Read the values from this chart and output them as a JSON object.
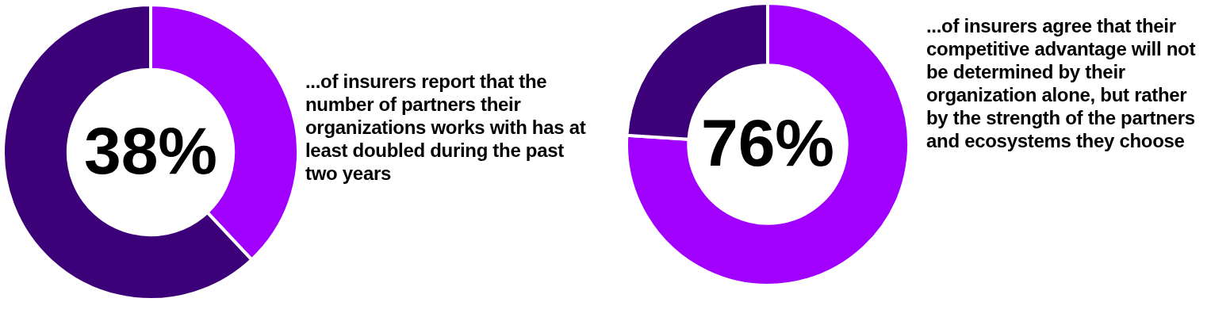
{
  "chart_data": [
    {
      "type": "donut",
      "categories": [
        null,
        null
      ],
      "values": [
        38,
        62
      ],
      "colors": [
        "#a100ff",
        "#3c0078"
      ],
      "value_labels": [
        "38%",
        null
      ],
      "legend": false,
      "annotations": [
        "...of insurers report that the number of partners their organizations works with has at least doubled during the past two years"
      ]
    },
    {
      "type": "donut",
      "categories": [
        null,
        null
      ],
      "values": [
        76,
        24
      ],
      "colors": [
        "#a100ff",
        "#3c0078"
      ],
      "value_labels": [
        "76%",
        null
      ],
      "legend": false,
      "annotations": [
        "...of insurers agree that their competitive advantage will not be determined by their organization alone, but rather by the strength of the partners and ecosystems they choose"
      ]
    }
  ]
}
